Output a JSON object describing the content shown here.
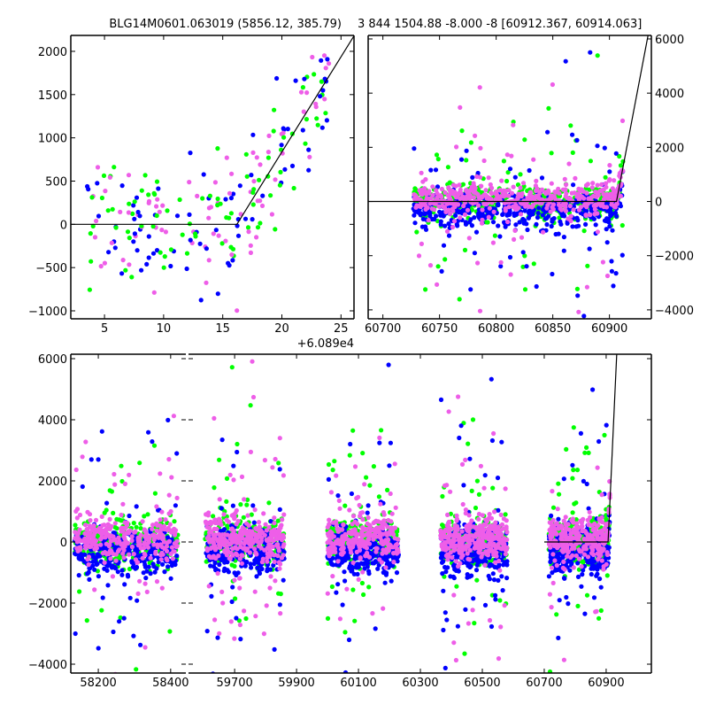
{
  "figure": {
    "title_left": "BLG14M0601.063019 (5856.12, 385.79)",
    "title_right": "3 844 1504.88 -8.000 -8 [60912.367, 60914.063]",
    "offset_text": "+6.089e4"
  },
  "colors": {
    "green": "#00ff00",
    "blue": "#0000ff",
    "magenta": "#ee5ee8",
    "model": "#000000"
  },
  "chart_data": [
    {
      "type": "scatter",
      "panel": "top-left",
      "xlim": [
        2.15,
        26.1
      ],
      "ylim": [
        -1092,
        2184
      ],
      "x_offset": 60890,
      "xticks": [
        "5",
        "10",
        "15",
        "20",
        "25"
      ],
      "yticks": [
        "−1000",
        "−500",
        "0",
        "500",
        "1000",
        "1500",
        "2000"
      ],
      "ytick_values": [
        -1000,
        -500,
        0,
        500,
        1000,
        1500,
        2000
      ],
      "xtick_values": [
        5,
        10,
        15,
        20,
        25
      ],
      "series": [
        {
          "name": "green"
        },
        {
          "name": "blue"
        },
        {
          "name": "magenta"
        }
      ],
      "model": {
        "break_x": 16.2,
        "slope_per_day": 220,
        "baseline": 0
      },
      "point_x_range": [
        3.5,
        24.2
      ],
      "noise": 380
    },
    {
      "type": "scatter",
      "panel": "top-right",
      "xlim": [
        60687,
        60937
      ],
      "ylim": [
        -4330,
        6130
      ],
      "xticks": [
        "60700",
        "60750",
        "60800",
        "60850",
        "60900"
      ],
      "xtick_values": [
        60700,
        60750,
        60800,
        60850,
        60900
      ],
      "yticks": [
        "−4000",
        "−2000",
        "0",
        "2000",
        "4000",
        "6000"
      ],
      "ytick_values": [
        -4000,
        -2000,
        0,
        2000,
        4000,
        6000
      ],
      "yaxis_side": "right",
      "series": [
        {
          "name": "green"
        },
        {
          "name": "blue"
        },
        {
          "name": "magenta"
        }
      ],
      "model": {
        "break_x": 60906.2,
        "slope_per_day": 220,
        "baseline": 0
      },
      "point_x_range": [
        60727,
        60912
      ],
      "noise": 300
    },
    {
      "type": "scatter",
      "panel": "bottom",
      "broken_x_axis": true,
      "segments": [
        {
          "xlim": [
            58124,
            58442
          ],
          "xticks": [
            "58200",
            "58400"
          ],
          "xtick_values": [
            58200,
            58400
          ]
        },
        {
          "xlim": [
            59551,
            61046
          ],
          "xticks": [
            "59700",
            "59900",
            "60100",
            "60300",
            "60500",
            "60700",
            "60900"
          ],
          "xtick_values": [
            59700,
            59900,
            60100,
            60300,
            60500,
            60700,
            60900
          ]
        }
      ],
      "ylim": [
        -4290,
        6145
      ],
      "yticks": [
        "−4000",
        "−2000",
        "0",
        "2000",
        "4000",
        "6000"
      ],
      "ytick_values": [
        -4000,
        -2000,
        0,
        2000,
        4000,
        6000
      ],
      "seasons": [
        [
          58135,
          58420
        ],
        [
          59605,
          59860
        ],
        [
          60000,
          60230
        ],
        [
          60365,
          60580
        ],
        [
          60715,
          60912
        ]
      ],
      "series": [
        {
          "name": "green"
        },
        {
          "name": "blue"
        },
        {
          "name": "magenta"
        }
      ],
      "model": {
        "start_x": 60700,
        "break_x": 60906.2,
        "slope_per_day": 220,
        "baseline": 0
      },
      "noise": 350
    }
  ]
}
